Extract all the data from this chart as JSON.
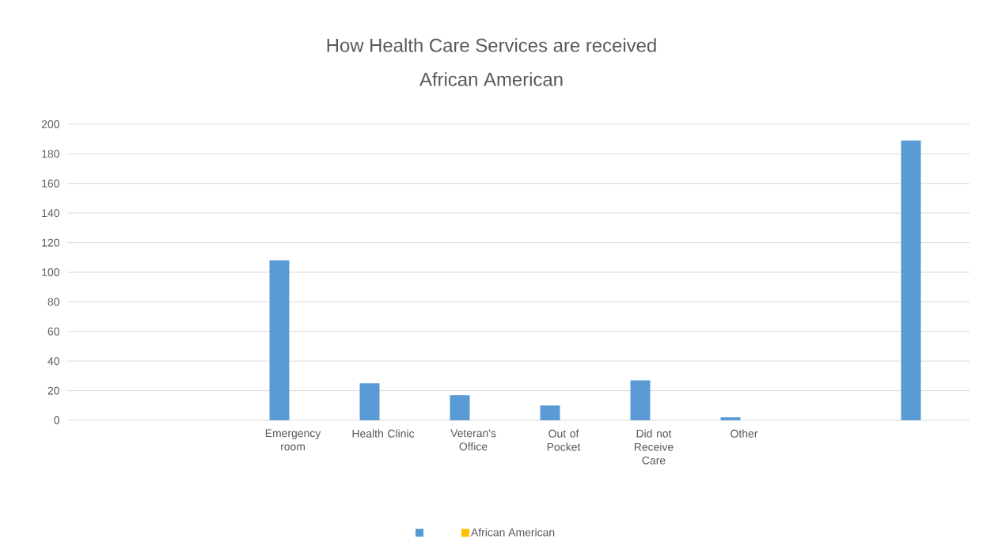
{
  "chart_data": {
    "type": "bar",
    "title": "How Health Care Services are received",
    "subtitle": "African American",
    "categories": [
      null,
      null,
      "Emergency room",
      "Health Clinic",
      "Veteran's Office",
      "Out of Pocket",
      "Did not Receive Care",
      "Other",
      null,
      null
    ],
    "series": [
      {
        "color": "#5b9bd5",
        "values": [
          null,
          null,
          108,
          25,
          17,
          10,
          27,
          2,
          null,
          189
        ]
      },
      {
        "name": "African American",
        "color": "#ffc000",
        "values": [
          null,
          null,
          null,
          null,
          null,
          null,
          null,
          null,
          null,
          null
        ]
      }
    ],
    "ylim": [
      0,
      200
    ],
    "yticks": [
      0,
      20,
      40,
      60,
      80,
      100,
      120,
      140,
      160,
      180,
      200
    ],
    "grid": "y",
    "legend": "bottom"
  }
}
